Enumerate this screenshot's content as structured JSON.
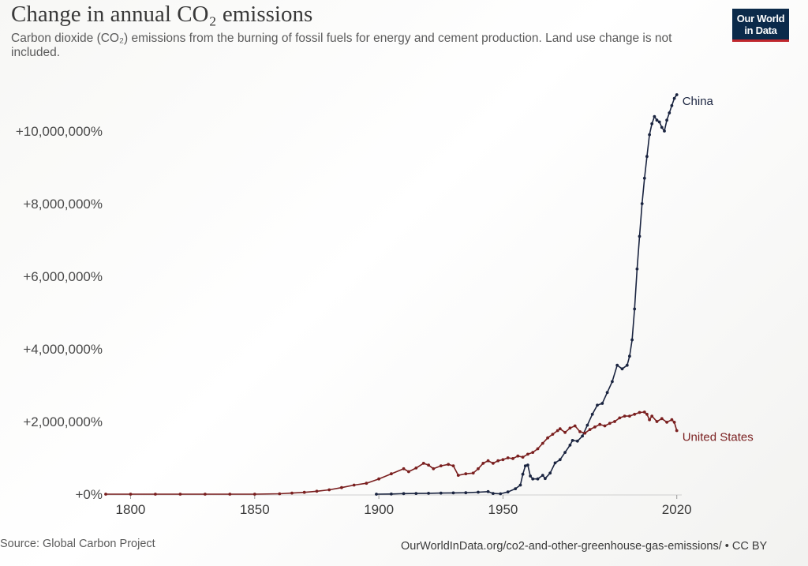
{
  "header": {
    "title": "Change in annual CO₂ emissions",
    "subtitle": "Carbon dioxide (CO₂) emissions from the burning of fossil fuels for energy and cement production. Land use change is not included.",
    "logo_line1": "Our World",
    "logo_line2": "in Data"
  },
  "footer": {
    "source": "Source: Global Carbon Project",
    "url": "OurWorldInData.org/co2-and-other-greenhouse-gas-emissions/ • CC BY"
  },
  "colors": {
    "china": "#1a2440",
    "united_states": "#7a1f1f",
    "axis": "#cfcfcf",
    "logo_bg": "#0b2a4a",
    "logo_accent": "#c0272d"
  },
  "chart_data": {
    "type": "line",
    "xlim": [
      1790,
      2022
    ],
    "ylim": [
      0,
      11500000
    ],
    "y_ticks": [
      0,
      2000000,
      4000000,
      6000000,
      8000000,
      10000000
    ],
    "y_tick_labels": [
      "+0%",
      "+2,000,000%",
      "+4,000,000%",
      "+6,000,000%",
      "+8,000,000%",
      "+10,000,000%"
    ],
    "x_ticks": [
      1800,
      1850,
      1900,
      1950,
      2020
    ],
    "x_tick_labels": [
      "1800",
      "1850",
      "1900",
      "1950",
      "2020"
    ],
    "grid": false,
    "series": [
      {
        "name": "China",
        "color": "#1a2440",
        "points": [
          [
            1899,
            0
          ],
          [
            1905,
            5000
          ],
          [
            1910,
            15000
          ],
          [
            1915,
            20000
          ],
          [
            1920,
            25000
          ],
          [
            1925,
            30000
          ],
          [
            1930,
            35000
          ],
          [
            1935,
            40000
          ],
          [
            1940,
            55000
          ],
          [
            1944,
            70000
          ],
          [
            1946,
            20000
          ],
          [
            1949,
            10000
          ],
          [
            1952,
            60000
          ],
          [
            1955,
            150000
          ],
          [
            1957,
            250000
          ],
          [
            1958,
            550000
          ],
          [
            1959,
            780000
          ],
          [
            1960,
            800000
          ],
          [
            1961,
            500000
          ],
          [
            1962,
            420000
          ],
          [
            1964,
            420000
          ],
          [
            1966,
            520000
          ],
          [
            1967,
            430000
          ],
          [
            1969,
            580000
          ],
          [
            1971,
            860000
          ],
          [
            1973,
            950000
          ],
          [
            1975,
            1150000
          ],
          [
            1977,
            1350000
          ],
          [
            1978,
            1480000
          ],
          [
            1980,
            1460000
          ],
          [
            1982,
            1600000
          ],
          [
            1984,
            1900000
          ],
          [
            1986,
            2200000
          ],
          [
            1988,
            2450000
          ],
          [
            1990,
            2500000
          ],
          [
            1992,
            2800000
          ],
          [
            1994,
            3100000
          ],
          [
            1996,
            3550000
          ],
          [
            1998,
            3450000
          ],
          [
            2000,
            3550000
          ],
          [
            2001,
            3800000
          ],
          [
            2002,
            4250000
          ],
          [
            2003,
            5100000
          ],
          [
            2004,
            6200000
          ],
          [
            2005,
            7100000
          ],
          [
            2006,
            8000000
          ],
          [
            2007,
            8700000
          ],
          [
            2008,
            9300000
          ],
          [
            2009,
            9900000
          ],
          [
            2010,
            10200000
          ],
          [
            2011,
            10400000
          ],
          [
            2012,
            10300000
          ],
          [
            2013,
            10250000
          ],
          [
            2014,
            10100000
          ],
          [
            2015,
            10000000
          ],
          [
            2016,
            10300000
          ],
          [
            2017,
            10500000
          ],
          [
            2018,
            10700000
          ],
          [
            2019,
            10900000
          ],
          [
            2020,
            11000000
          ]
        ]
      },
      {
        "name": "United States",
        "color": "#7a1f1f",
        "points": [
          [
            1790,
            0
          ],
          [
            1800,
            0
          ],
          [
            1810,
            0
          ],
          [
            1820,
            0
          ],
          [
            1830,
            0
          ],
          [
            1840,
            0
          ],
          [
            1850,
            0
          ],
          [
            1860,
            10000
          ],
          [
            1865,
            30000
          ],
          [
            1870,
            50000
          ],
          [
            1875,
            80000
          ],
          [
            1880,
            120000
          ],
          [
            1885,
            180000
          ],
          [
            1890,
            250000
          ],
          [
            1895,
            300000
          ],
          [
            1900,
            420000
          ],
          [
            1905,
            560000
          ],
          [
            1910,
            700000
          ],
          [
            1912,
            620000
          ],
          [
            1915,
            720000
          ],
          [
            1918,
            850000
          ],
          [
            1920,
            800000
          ],
          [
            1922,
            700000
          ],
          [
            1925,
            780000
          ],
          [
            1928,
            820000
          ],
          [
            1930,
            780000
          ],
          [
            1932,
            520000
          ],
          [
            1935,
            560000
          ],
          [
            1938,
            580000
          ],
          [
            1940,
            700000
          ],
          [
            1942,
            850000
          ],
          [
            1944,
            920000
          ],
          [
            1946,
            850000
          ],
          [
            1948,
            920000
          ],
          [
            1950,
            950000
          ],
          [
            1952,
            1000000
          ],
          [
            1954,
            980000
          ],
          [
            1956,
            1050000
          ],
          [
            1958,
            1020000
          ],
          [
            1960,
            1100000
          ],
          [
            1962,
            1150000
          ],
          [
            1964,
            1250000
          ],
          [
            1966,
            1400000
          ],
          [
            1968,
            1550000
          ],
          [
            1970,
            1650000
          ],
          [
            1972,
            1750000
          ],
          [
            1973,
            1800000
          ],
          [
            1975,
            1700000
          ],
          [
            1977,
            1820000
          ],
          [
            1979,
            1880000
          ],
          [
            1981,
            1720000
          ],
          [
            1983,
            1680000
          ],
          [
            1985,
            1780000
          ],
          [
            1987,
            1850000
          ],
          [
            1989,
            1920000
          ],
          [
            1991,
            1880000
          ],
          [
            1993,
            1950000
          ],
          [
            1995,
            2000000
          ],
          [
            1997,
            2100000
          ],
          [
            1999,
            2150000
          ],
          [
            2001,
            2150000
          ],
          [
            2003,
            2200000
          ],
          [
            2005,
            2250000
          ],
          [
            2007,
            2260000
          ],
          [
            2008,
            2200000
          ],
          [
            2009,
            2050000
          ],
          [
            2010,
            2150000
          ],
          [
            2012,
            2000000
          ],
          [
            2014,
            2080000
          ],
          [
            2016,
            1980000
          ],
          [
            2018,
            2050000
          ],
          [
            2019,
            1980000
          ],
          [
            2020,
            1750000
          ]
        ]
      }
    ]
  }
}
